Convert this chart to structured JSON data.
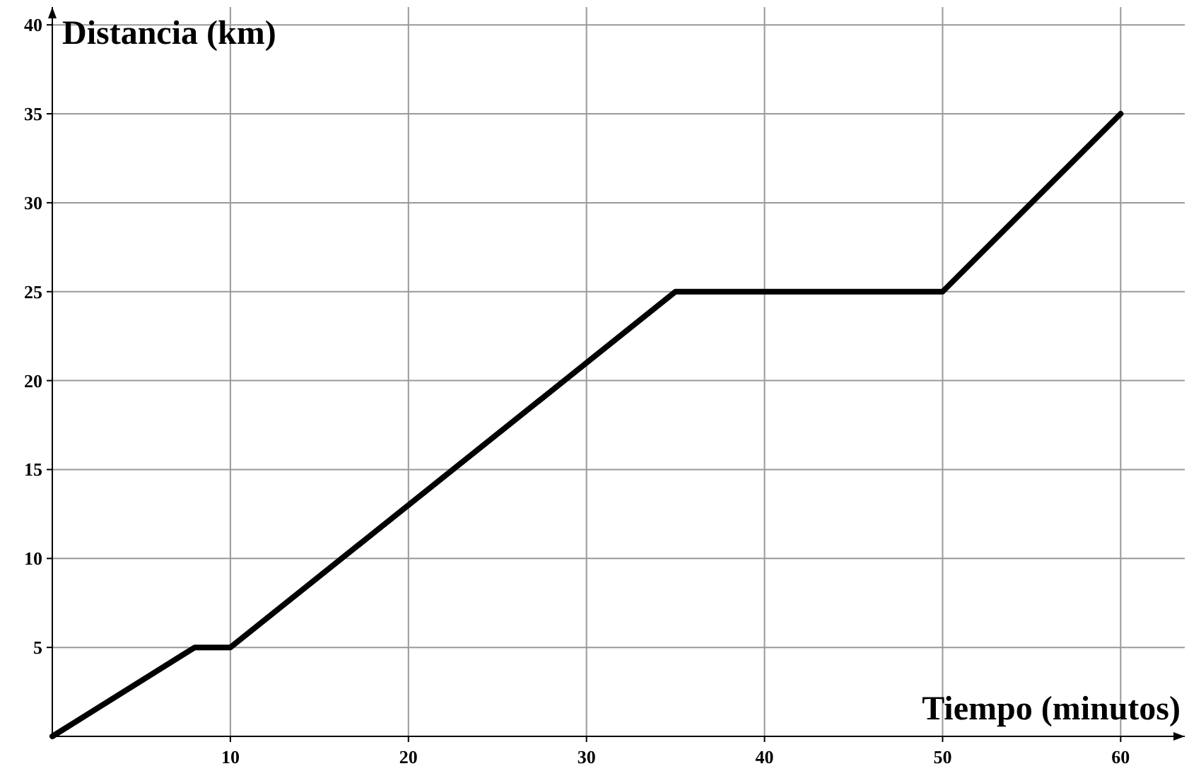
{
  "chart_data": {
    "type": "line",
    "xlabel": "Tiempo (minutos)",
    "ylabel": "Distancia (km)",
    "x": [
      0,
      8,
      10,
      35,
      50,
      60
    ],
    "series": [
      {
        "color": "#000000",
        "values": [
          0,
          5,
          5,
          25,
          25,
          35
        ]
      }
    ],
    "xlim": [
      0,
      63.6
    ],
    "ylim": [
      0,
      41
    ],
    "xticks": [
      10,
      20,
      30,
      40,
      50,
      60
    ],
    "yticks": [
      5,
      10,
      15,
      20,
      25,
      30,
      35,
      40
    ],
    "grid": true,
    "marker": "none",
    "line_style": "solid"
  }
}
